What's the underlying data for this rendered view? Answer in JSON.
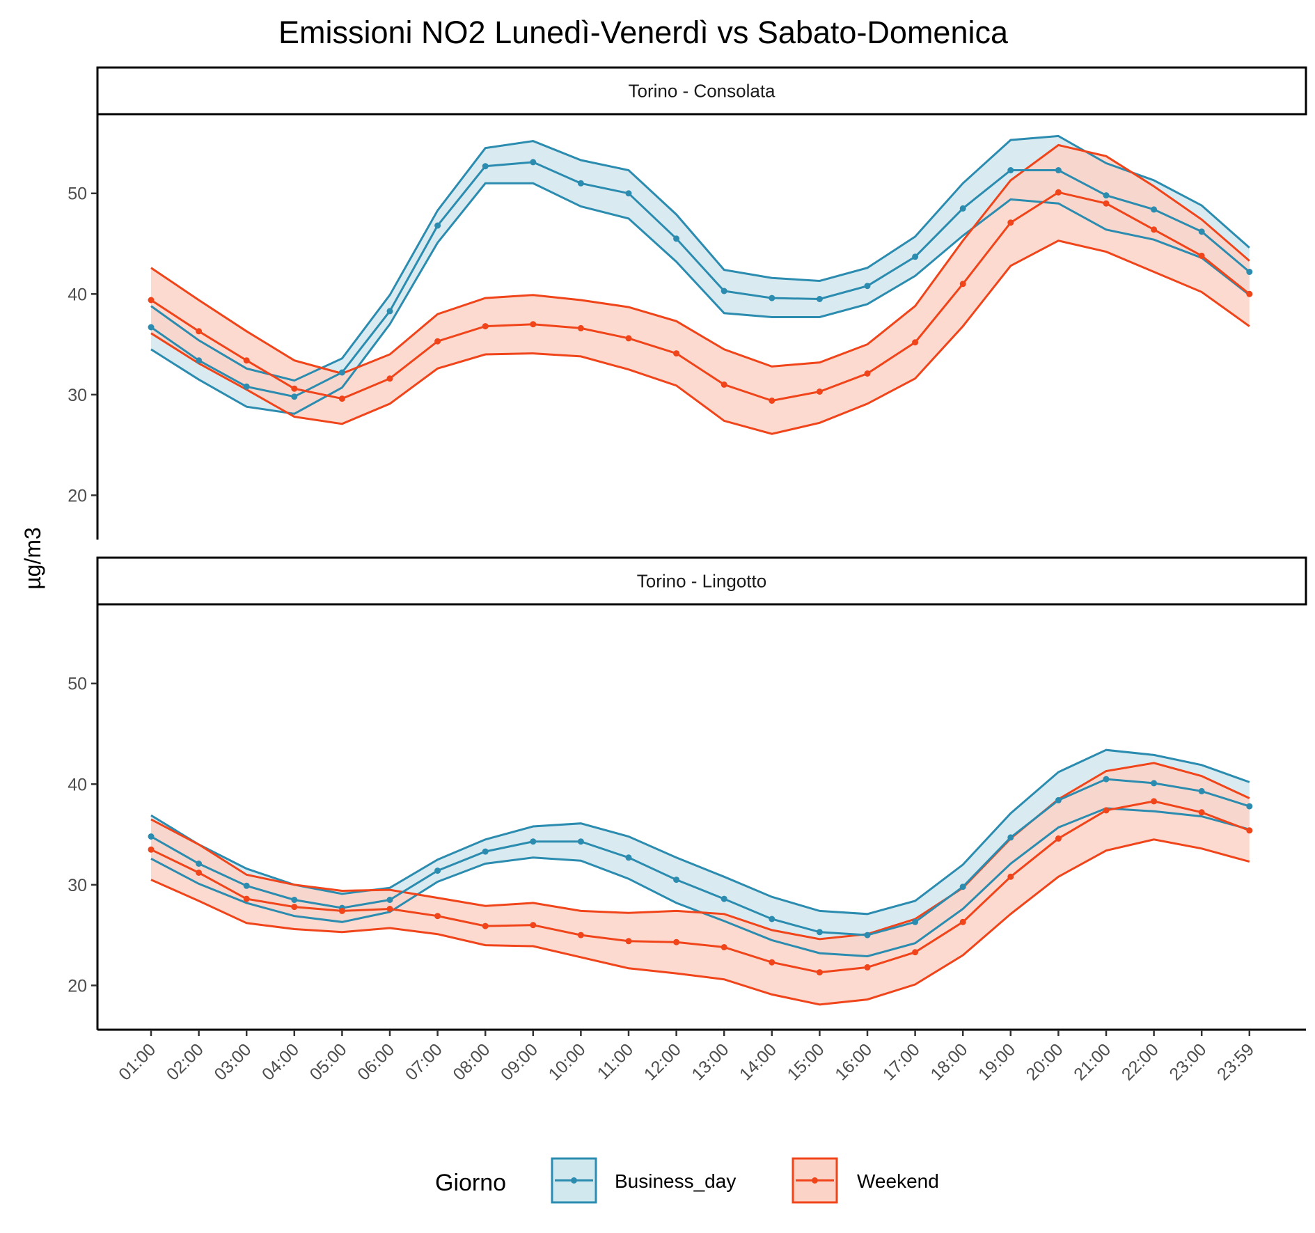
{
  "chart_data": {
    "type": "line",
    "title": "Emissioni NO2 Lunedì-Venerdì vs Sabato-Domenica",
    "ylabel": "µg/m3",
    "xlabel": "",
    "ylim": [
      15.6,
      57.8
    ],
    "yticks": [
      20,
      30,
      40,
      50
    ],
    "categories": [
      "01:00",
      "02:00",
      "03:00",
      "04:00",
      "05:00",
      "06:00",
      "07:00",
      "08:00",
      "09:00",
      "10:00",
      "11:00",
      "12:00",
      "13:00",
      "14:00",
      "15:00",
      "16:00",
      "17:00",
      "18:00",
      "19:00",
      "20:00",
      "21:00",
      "22:00",
      "23:00",
      "23:59"
    ],
    "legend": {
      "title": "Giorno",
      "position": "bottom",
      "entries": [
        "Business_day",
        "Weekend"
      ]
    },
    "colors": {
      "Business_day": "#2b8cb0",
      "Weekend": "#f0441a",
      "Business_day_fill": "#d2e8ef",
      "Weekend_fill": "#fcd3c7"
    },
    "grid": false,
    "panels": [
      {
        "label": "Torino - Consolata",
        "series": [
          {
            "name": "Business_day",
            "mean": [
              36.7,
              33.4,
              30.8,
              29.8,
              32.2,
              38.3,
              46.8,
              52.7,
              53.1,
              51.0,
              50.0,
              45.5,
              40.3,
              39.6,
              39.5,
              40.8,
              43.7,
              48.5,
              52.3,
              52.3,
              49.8,
              48.4,
              46.2,
              42.2
            ],
            "lower": [
              34.5,
              31.5,
              28.8,
              28.1,
              30.7,
              37.0,
              45.1,
              51.0,
              51.0,
              48.7,
              47.5,
              43.2,
              38.1,
              37.7,
              37.7,
              39.0,
              41.8,
              45.8,
              49.4,
              49.0,
              46.4,
              45.4,
              43.6,
              39.9
            ],
            "upper": [
              38.8,
              35.4,
              32.6,
              31.4,
              33.6,
              39.9,
              48.3,
              54.5,
              55.2,
              53.3,
              52.3,
              47.9,
              42.4,
              41.6,
              41.3,
              42.6,
              45.7,
              51.0,
              55.3,
              55.7,
              53.0,
              51.3,
              48.8,
              44.6
            ]
          },
          {
            "name": "Weekend",
            "mean": [
              39.4,
              36.3,
              33.4,
              30.6,
              29.6,
              31.6,
              35.3,
              36.8,
              37.0,
              36.6,
              35.6,
              34.1,
              31.0,
              29.4,
              30.3,
              32.1,
              35.2,
              41.0,
              47.1,
              50.1,
              49.0,
              46.4,
              43.8,
              40.0
            ],
            "lower": [
              36.1,
              33.1,
              30.5,
              27.8,
              27.1,
              29.1,
              32.6,
              34.0,
              34.1,
              33.8,
              32.5,
              30.9,
              27.4,
              26.1,
              27.2,
              29.1,
              31.6,
              36.8,
              42.8,
              45.3,
              44.2,
              42.2,
              40.2,
              36.8
            ],
            "upper": [
              42.6,
              39.4,
              36.3,
              33.4,
              32.1,
              34.0,
              38.0,
              39.6,
              39.9,
              39.4,
              38.7,
              37.3,
              34.5,
              32.8,
              33.2,
              35.0,
              38.8,
              45.3,
              51.3,
              54.8,
              53.7,
              50.7,
              47.4,
              43.3
            ]
          }
        ]
      },
      {
        "label": "Torino - Lingotto",
        "series": [
          {
            "name": "Business_day",
            "mean": [
              34.8,
              32.1,
              29.9,
              28.5,
              27.7,
              28.5,
              31.4,
              33.3,
              34.3,
              34.3,
              32.7,
              30.5,
              28.6,
              26.6,
              25.3,
              25.0,
              26.3,
              29.8,
              34.7,
              38.4,
              40.5,
              40.1,
              39.3,
              37.8
            ],
            "lower": [
              32.6,
              30.1,
              28.2,
              26.9,
              26.3,
              27.3,
              30.3,
              32.1,
              32.7,
              32.4,
              30.6,
              28.2,
              26.4,
              24.5,
              23.2,
              22.9,
              24.2,
              27.6,
              32.1,
              35.7,
              37.6,
              37.3,
              36.8,
              35.5
            ],
            "upper": [
              36.9,
              34.0,
              31.6,
              30.0,
              29.1,
              29.7,
              32.5,
              34.5,
              35.8,
              36.1,
              34.8,
              32.7,
              30.8,
              28.8,
              27.4,
              27.1,
              28.4,
              32.0,
              37.1,
              41.2,
              43.4,
              42.9,
              41.9,
              40.2
            ]
          },
          {
            "name": "Weekend",
            "mean": [
              33.5,
              31.2,
              28.6,
              27.8,
              27.4,
              27.6,
              26.9,
              25.9,
              26.0,
              25.0,
              24.4,
              24.3,
              23.8,
              22.3,
              21.3,
              21.8,
              23.3,
              26.3,
              30.8,
              34.6,
              37.4,
              38.3,
              37.2,
              35.4
            ],
            "lower": [
              30.5,
              28.4,
              26.2,
              25.6,
              25.3,
              25.7,
              25.1,
              24.0,
              23.9,
              22.8,
              21.7,
              21.2,
              20.6,
              19.1,
              18.1,
              18.6,
              20.1,
              23.0,
              27.1,
              30.8,
              33.4,
              34.5,
              33.6,
              32.3
            ],
            "upper": [
              36.5,
              34.0,
              31.0,
              30.0,
              29.4,
              29.5,
              28.7,
              27.9,
              28.2,
              27.4,
              27.2,
              27.4,
              27.1,
              25.5,
              24.6,
              25.1,
              26.6,
              29.7,
              34.6,
              38.5,
              41.3,
              42.1,
              40.8,
              38.6
            ]
          }
        ]
      }
    ]
  }
}
